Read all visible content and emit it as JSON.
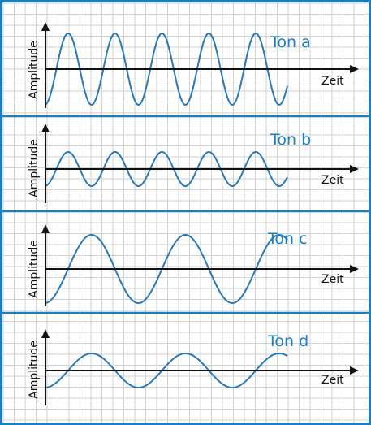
{
  "colors": {
    "border": "#1a7fc1",
    "grid": "#c9c9c9",
    "wave": "#2a78b4",
    "axis": "#111111",
    "label": "#1a7fc1"
  },
  "panels": [
    {
      "tone_label": "Ton a",
      "y_label": "Amplitude",
      "x_label": "Zeit",
      "cycles": 5,
      "relative_amplitude": 1.0
    },
    {
      "tone_label": "Ton b",
      "y_label": "Amplitude",
      "x_label": "Zeit",
      "cycles": 5,
      "relative_amplitude": 0.5
    },
    {
      "tone_label": "Ton c",
      "y_label": "Amplitude",
      "x_label": "Zeit",
      "cycles": 2.5,
      "relative_amplitude": 1.0
    },
    {
      "tone_label": "Ton d",
      "y_label": "Amplitude",
      "x_label": "Zeit",
      "cycles": 2.5,
      "relative_amplitude": 0.5
    }
  ]
}
